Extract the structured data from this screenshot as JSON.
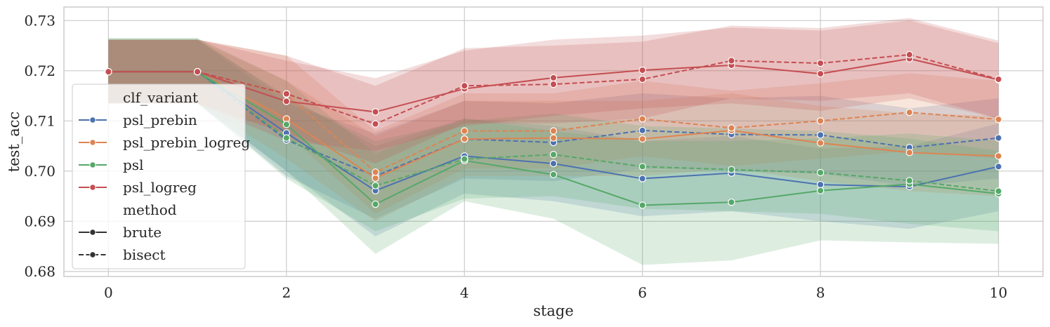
{
  "chart_data": {
    "type": "line",
    "title": "",
    "xlabel": "stage",
    "ylabel": "test_acc",
    "xlim": [
      -0.5,
      10.5
    ],
    "ylim": [
      0.679,
      0.7327
    ],
    "xticks": [
      0,
      2,
      4,
      6,
      8,
      10
    ],
    "xtick_labels": [
      "0",
      "2",
      "4",
      "6",
      "8",
      "10"
    ],
    "yticks": [
      0.68,
      0.69,
      0.7,
      0.71,
      0.72,
      0.73
    ],
    "ytick_labels": [
      "0.68",
      "0.69",
      "0.70",
      "0.71",
      "0.72",
      "0.73"
    ],
    "grid": true,
    "legend_position": "left",
    "legend": {
      "hue_title": "clf_variant",
      "style_title": "method",
      "hue_entries": [
        {
          "label": "psl_prebin",
          "color": "#4c72b0"
        },
        {
          "label": "psl_prebin_logreg",
          "color": "#dd8452"
        },
        {
          "label": "psl",
          "color": "#55a868"
        },
        {
          "label": "psl_logreg",
          "color": "#c44e52"
        }
      ],
      "style_entries": [
        {
          "label": "brute",
          "dash": "solid"
        },
        {
          "label": "bisect",
          "dash": "dashed"
        }
      ]
    },
    "x": [
      0,
      1,
      2,
      3,
      4,
      5,
      6,
      7,
      8,
      9,
      10
    ],
    "series": [
      {
        "name": "psl_prebin brute",
        "variant": "psl_prebin",
        "method": "brute",
        "color": "#4c72b0",
        "dash": "solid",
        "values": [
          0.7198,
          0.7198,
          0.7076,
          0.6961,
          0.703,
          0.7015,
          0.6985,
          0.6996,
          0.6973,
          0.6969,
          0.7009
        ],
        "lower": [
          0.7135,
          0.7135,
          0.7,
          0.687,
          0.6955,
          0.694,
          0.691,
          0.692,
          0.69,
          0.6885,
          0.692
        ],
        "upper": [
          0.7262,
          0.7262,
          0.715,
          0.705,
          0.7105,
          0.709,
          0.706,
          0.707,
          0.7045,
          0.705,
          0.7095
        ]
      },
      {
        "name": "psl_prebin bisect",
        "variant": "psl_prebin",
        "method": "bisect",
        "color": "#4c72b0",
        "dash": "dashed",
        "values": [
          0.7198,
          0.7198,
          0.7062,
          0.699,
          0.7064,
          0.7057,
          0.7081,
          0.7073,
          0.7072,
          0.7047,
          0.7066
        ],
        "lower": [
          0.7135,
          0.7135,
          0.699,
          0.6905,
          0.6985,
          0.698,
          0.7005,
          0.7,
          0.6995,
          0.697,
          0.6985
        ],
        "upper": [
          0.7262,
          0.7262,
          0.7135,
          0.7075,
          0.714,
          0.7135,
          0.7155,
          0.7145,
          0.715,
          0.7125,
          0.7145
        ]
      },
      {
        "name": "psl_prebin_logreg brute",
        "variant": "psl_prebin_logreg",
        "method": "brute",
        "color": "#dd8452",
        "dash": "solid",
        "values": [
          0.7198,
          0.7198,
          0.7104,
          0.6986,
          0.7064,
          0.7066,
          0.7064,
          0.7081,
          0.7056,
          0.7037,
          0.703
        ],
        "lower": [
          0.7135,
          0.7135,
          0.7025,
          0.69,
          0.699,
          0.699,
          0.699,
          0.7005,
          0.698,
          0.696,
          0.695
        ],
        "upper": [
          0.7262,
          0.7262,
          0.718,
          0.707,
          0.714,
          0.714,
          0.714,
          0.7155,
          0.713,
          0.7115,
          0.711
        ]
      },
      {
        "name": "psl_prebin_logreg bisect",
        "variant": "psl_prebin_logreg",
        "method": "bisect",
        "color": "#dd8452",
        "dash": "dashed",
        "values": [
          0.7198,
          0.7198,
          0.7153,
          0.6998,
          0.708,
          0.708,
          0.7104,
          0.7086,
          0.71,
          0.7117,
          0.7103
        ],
        "lower": [
          0.7135,
          0.7135,
          0.7075,
          0.6915,
          0.7005,
          0.7005,
          0.703,
          0.701,
          0.7025,
          0.704,
          0.7025
        ],
        "upper": [
          0.7262,
          0.7262,
          0.723,
          0.708,
          0.7155,
          0.7155,
          0.718,
          0.716,
          0.7175,
          0.7195,
          0.718
        ]
      },
      {
        "name": "psl brute",
        "variant": "psl",
        "method": "brute",
        "color": "#55a868",
        "dash": "solid",
        "values": [
          0.7198,
          0.7198,
          0.7093,
          0.6934,
          0.7021,
          0.6993,
          0.6932,
          0.6938,
          0.6961,
          0.6974,
          0.6955
        ],
        "lower": [
          0.7135,
          0.7135,
          0.7,
          0.6835,
          0.694,
          0.6905,
          0.6813,
          0.6822,
          0.6862,
          0.6858,
          0.6855
        ],
        "upper": [
          0.7265,
          0.7265,
          0.718,
          0.7035,
          0.7105,
          0.708,
          0.706,
          0.706,
          0.7065,
          0.7075,
          0.706
        ]
      },
      {
        "name": "psl bisect",
        "variant": "psl",
        "method": "bisect",
        "color": "#55a868",
        "dash": "dashed",
        "values": [
          0.7198,
          0.7198,
          0.7066,
          0.6971,
          0.7024,
          0.7033,
          0.7009,
          0.7003,
          0.6997,
          0.6981,
          0.696
        ],
        "lower": [
          0.7135,
          0.7135,
          0.6985,
          0.688,
          0.6945,
          0.695,
          0.6925,
          0.692,
          0.6915,
          0.6895,
          0.688
        ],
        "upper": [
          0.7265,
          0.7265,
          0.7145,
          0.706,
          0.71,
          0.7115,
          0.709,
          0.7085,
          0.708,
          0.7065,
          0.704
        ]
      },
      {
        "name": "psl_logreg brute",
        "variant": "psl_logreg",
        "method": "brute",
        "color": "#c44e52",
        "dash": "solid",
        "values": [
          0.7198,
          0.7198,
          0.7139,
          0.7118,
          0.7164,
          0.7186,
          0.7201,
          0.7211,
          0.7194,
          0.7224,
          0.7182
        ],
        "lower": [
          0.7135,
          0.7135,
          0.706,
          0.704,
          0.709,
          0.711,
          0.7125,
          0.7135,
          0.712,
          0.7145,
          0.7105
        ],
        "upper": [
          0.7262,
          0.7262,
          0.722,
          0.7185,
          0.724,
          0.7262,
          0.727,
          0.7286,
          0.728,
          0.73,
          0.7255
        ]
      },
      {
        "name": "psl_logreg bisect",
        "variant": "psl_logreg",
        "method": "bisect",
        "color": "#c44e52",
        "dash": "dashed",
        "values": [
          0.7198,
          0.7198,
          0.7154,
          0.7094,
          0.717,
          0.7173,
          0.7183,
          0.722,
          0.7215,
          0.7232,
          0.7183
        ],
        "lower": [
          0.7135,
          0.7135,
          0.7075,
          0.7015,
          0.7095,
          0.7095,
          0.7105,
          0.7145,
          0.714,
          0.7155,
          0.7105
        ],
        "upper": [
          0.7262,
          0.7262,
          0.723,
          0.717,
          0.7245,
          0.725,
          0.7258,
          0.729,
          0.7285,
          0.7305,
          0.726
        ]
      }
    ]
  }
}
